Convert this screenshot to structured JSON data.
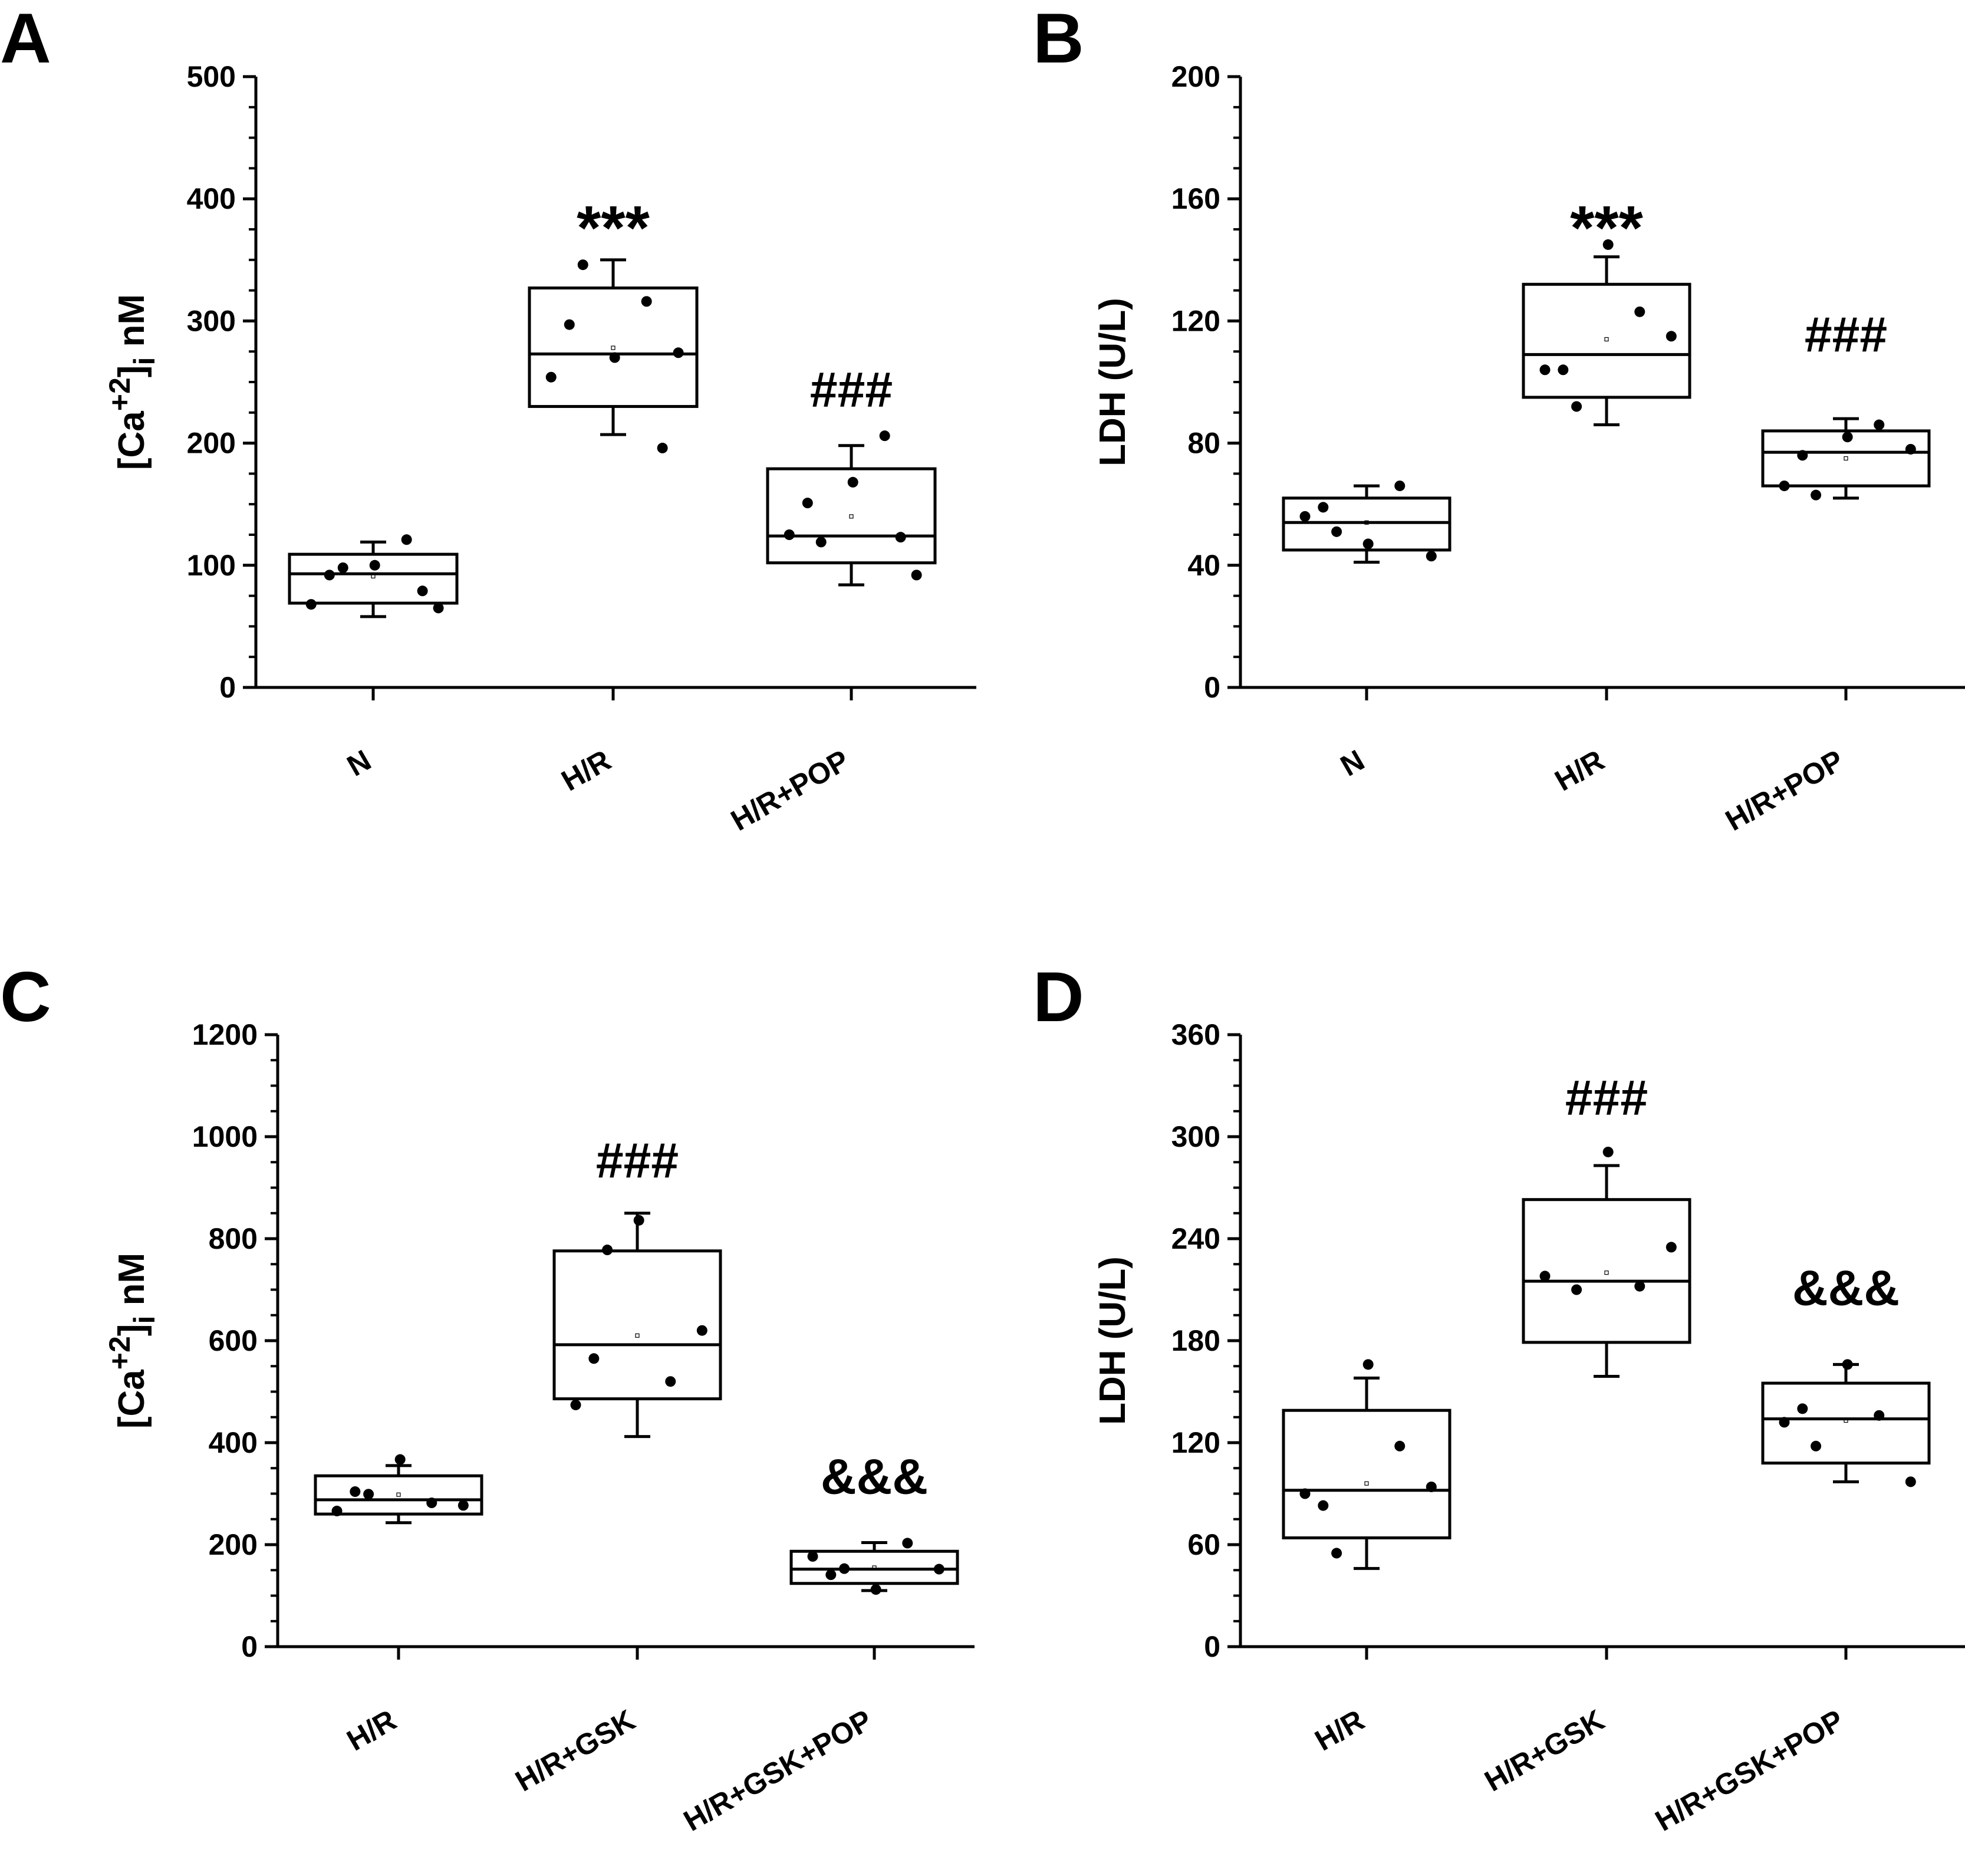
{
  "chart_data": [
    {
      "panel": "A",
      "type": "box",
      "ylabel": "[Ca+2]i nM",
      "ylabel_parts": {
        "base": "[Ca",
        "sup": "+2",
        "bracket": "]",
        "sub": "i",
        "unit": " nM"
      },
      "ylim": [
        0,
        500
      ],
      "yticks": [
        0,
        100,
        200,
        300,
        400,
        500
      ],
      "categories": [
        "N",
        "H/R",
        "H/R+POP"
      ],
      "boxes": [
        {
          "q1": 69,
          "median": 93,
          "q3": 109,
          "whisker_low": 58,
          "whisker_high": 119,
          "mean": 91,
          "points": [
            68,
            98,
            100,
            121,
            65,
            92,
            79
          ]
        },
        {
          "q1": 230,
          "median": 273,
          "q3": 327,
          "whisker_low": 207,
          "whisker_high": 350,
          "mean": 278,
          "points": [
            254,
            346,
            270,
            316,
            274,
            297,
            196
          ]
        },
        {
          "q1": 102,
          "median": 124,
          "q3": 179,
          "whisker_low": 84,
          "whisker_high": 198,
          "mean": 140,
          "points": [
            125,
            119,
            168,
            206,
            92,
            151,
            123
          ]
        }
      ],
      "annotations": [
        {
          "category": "H/R",
          "text": "***",
          "y": 375
        },
        {
          "category": "H/R+POP",
          "text": "###",
          "y": 230
        }
      ]
    },
    {
      "panel": "B",
      "type": "box",
      "ylabel": "LDH (U/L)",
      "ylim": [
        0,
        200
      ],
      "yticks": [
        0,
        40,
        80,
        120,
        160,
        200
      ],
      "categories": [
        "N",
        "H/R",
        "H/R+POP"
      ],
      "boxes": [
        {
          "q1": 45,
          "median": 54,
          "q3": 62,
          "whisker_low": 41,
          "whisker_high": 66,
          "mean": 54,
          "points": [
            56,
            51,
            47,
            66,
            43,
            59
          ]
        },
        {
          "q1": 95,
          "median": 109,
          "q3": 132,
          "whisker_low": 86,
          "whisker_high": 141,
          "mean": 114,
          "points": [
            104,
            92,
            145,
            123,
            115,
            104
          ]
        },
        {
          "q1": 66,
          "median": 77,
          "q3": 84,
          "whisker_low": 62,
          "whisker_high": 88,
          "mean": 75,
          "points": [
            66,
            63,
            82,
            86,
            78,
            76
          ]
        }
      ],
      "annotations": [
        {
          "category": "H/R",
          "text": "***",
          "y": 150
        },
        {
          "category": "H/R+POP",
          "text": "###",
          "y": 110
        }
      ]
    },
    {
      "panel": "C",
      "type": "box",
      "ylabel": "[Ca+2]i nM",
      "ylabel_parts": {
        "base": "[Ca",
        "sup": "+2",
        "bracket": "]",
        "sub": "i",
        "unit": " nM"
      },
      "ylim": [
        0,
        1200
      ],
      "yticks": [
        0,
        200,
        400,
        600,
        800,
        1000,
        1200
      ],
      "categories": [
        "H/R",
        "H/R+GSK",
        "H/R+GSK+POP"
      ],
      "boxes": [
        {
          "q1": 260,
          "median": 288,
          "q3": 335,
          "whisker_low": 243,
          "whisker_high": 355,
          "mean": 298,
          "points": [
            266,
            299,
            367,
            282,
            277,
            304
          ]
        },
        {
          "q1": 486,
          "median": 592,
          "q3": 776,
          "whisker_low": 412,
          "whisker_high": 850,
          "mean": 610,
          "points": [
            474,
            778,
            836,
            520,
            620,
            565
          ]
        },
        {
          "q1": 124,
          "median": 152,
          "q3": 187,
          "whisker_low": 110,
          "whisker_high": 204,
          "mean": 155,
          "points": [
            177,
            153,
            112,
            203,
            152,
            141
          ]
        }
      ],
      "annotations": [
        {
          "category": "H/R+GSK",
          "text": "###",
          "y": 920
        },
        {
          "category": "H/R+GSK+POP",
          "text": "&&&",
          "y": 300
        }
      ]
    },
    {
      "panel": "D",
      "type": "box",
      "ylabel": "LDH (U/L)",
      "ylim": [
        0,
        360
      ],
      "yticks": [
        0,
        60,
        120,
        180,
        240,
        300,
        360
      ],
      "categories": [
        "H/R",
        "H/R+GSK",
        "H/R+GSK+POP"
      ],
      "boxes": [
        {
          "q1": 64,
          "median": 92,
          "q3": 139,
          "whisker_low": 46,
          "whisker_high": 158,
          "mean": 96,
          "points": [
            90,
            55,
            166,
            118,
            94,
            83
          ]
        },
        {
          "q1": 179,
          "median": 215,
          "q3": 263,
          "whisker_low": 159,
          "whisker_high": 283,
          "mean": 220,
          "points": [
            218,
            210,
            291,
            212,
            235
          ]
        },
        {
          "q1": 108,
          "median": 134,
          "q3": 155,
          "whisker_low": 97,
          "whisker_high": 166,
          "mean": 133,
          "points": [
            132,
            118,
            166,
            136,
            97,
            140
          ]
        }
      ],
      "annotations": [
        {
          "category": "H/R+GSK",
          "text": "###",
          "y": 313
        },
        {
          "category": "H/R+GSK+POP",
          "text": "&&&",
          "y": 201
        }
      ]
    }
  ],
  "colors": {
    "ink": "#000000",
    "box_fill": "#ffffff",
    "background": "#ffffff"
  }
}
